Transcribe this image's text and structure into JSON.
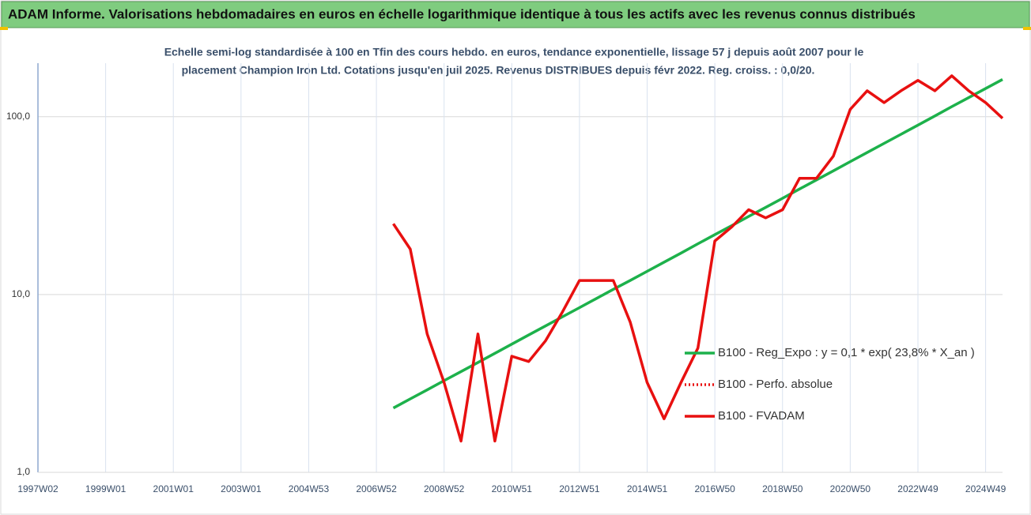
{
  "chart_data": {
    "type": "line",
    "title": "ADAM Informe. Valorisations hebdomadaires en euros en échelle logarithmique identique à tous les actifs avec les revenus connus distribués",
    "subtitle": [
      "Echelle semi-log standardisée à 100 en Tfin des cours hebdo. en euros, tendance exponentielle, lissage 57 j depuis août 2007 pour le",
      "placement Champion Iron Ltd. Cotations jusqu'en juil 2025. Revenus DISTRIBUES depuis févr 2022. Reg. croiss. : 0,0/20."
    ],
    "log_scale": true,
    "grid": true,
    "legend_position": "right",
    "categories": [
      "1997W02",
      null,
      null,
      null,
      "1999W01",
      null,
      null,
      null,
      "2001W01",
      null,
      null,
      null,
      "2003W01",
      null,
      null,
      null,
      "2004W53",
      null,
      null,
      null,
      "2006W52",
      null,
      null,
      null,
      "2008W52",
      null,
      null,
      null,
      "2010W51",
      null,
      null,
      null,
      "2012W51",
      null,
      null,
      null,
      "2014W51",
      null,
      null,
      null,
      "2016W50",
      null,
      null,
      null,
      "2018W50",
      null,
      null,
      null,
      "2020W50",
      null,
      null,
      null,
      "2022W49",
      null,
      null,
      null,
      "2024W49",
      null
    ],
    "ylim": [
      1,
      200
    ],
    "yticks": [
      {
        "value": 1,
        "label": "1,0"
      },
      {
        "value": 10,
        "label": "10,0"
      },
      {
        "value": 100,
        "label": "100,0"
      }
    ],
    "series": [
      {
        "name": "B100 - Reg_Expo : y = 0,1 * exp( 23,8% *  X_an )",
        "color": "#1db14b",
        "style": "solid",
        "values": [
          null,
          null,
          null,
          null,
          null,
          null,
          null,
          null,
          null,
          null,
          null,
          null,
          null,
          null,
          null,
          null,
          null,
          null,
          null,
          null,
          null,
          2.3,
          2.59,
          2.91,
          3.28,
          3.69,
          4.15,
          4.67,
          5.26,
          5.92,
          6.66,
          7.5,
          8.44,
          9.5,
          10.7,
          12.0,
          13.5,
          15.2,
          17.1,
          19.3,
          21.7,
          24.4,
          27.5,
          30.9,
          34.8,
          39.2,
          44.1,
          49.6,
          55.9,
          62.9,
          70.8,
          79.7,
          89.7,
          101,
          114,
          128,
          144,
          162
        ]
      },
      {
        "name": "B100 - Perfo. absolue",
        "color": "#e81010",
        "style": "dotted",
        "values": [
          null,
          null,
          null,
          null,
          null,
          null,
          null,
          null,
          null,
          null,
          null,
          null,
          null,
          null,
          null,
          null,
          null,
          null,
          null,
          null,
          null,
          null,
          null,
          null,
          null,
          null,
          null,
          null,
          null,
          null,
          null,
          null,
          null,
          null,
          null,
          null,
          null,
          null,
          null,
          null,
          null,
          null,
          null,
          null,
          null,
          null,
          null,
          null,
          null,
          null,
          null,
          null,
          null,
          null,
          null,
          null,
          null,
          null
        ]
      },
      {
        "name": "B100 - FVADAM",
        "color": "#e81010",
        "style": "solid",
        "values": [
          null,
          null,
          null,
          null,
          null,
          null,
          null,
          null,
          null,
          null,
          null,
          null,
          null,
          null,
          null,
          null,
          null,
          null,
          null,
          null,
          null,
          25,
          18,
          6,
          3.2,
          1.5,
          6,
          1.5,
          4.5,
          4.2,
          5.5,
          8,
          12,
          12,
          12,
          7,
          3.2,
          2,
          3.2,
          5,
          20,
          24,
          30,
          27,
          30,
          45,
          45,
          60,
          110,
          140,
          120,
          140,
          160,
          140,
          170,
          140,
          120,
          98
        ]
      }
    ]
  }
}
